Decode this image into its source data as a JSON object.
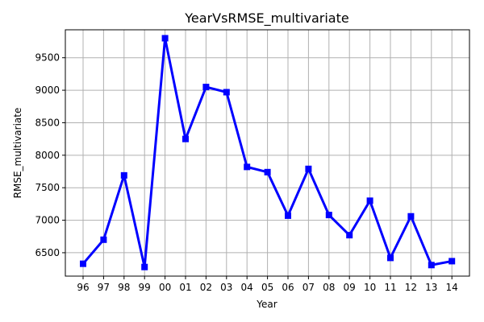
{
  "chart_data": {
    "type": "line",
    "title": "YearVsRMSE_multivariate",
    "xlabel": "Year",
    "ylabel": "RMSE_multivariate",
    "categories": [
      "96",
      "97",
      "98",
      "99",
      "00",
      "01",
      "02",
      "03",
      "04",
      "05",
      "06",
      "07",
      "08",
      "09",
      "10",
      "11",
      "12",
      "13",
      "14"
    ],
    "series": [
      {
        "values": [
          6330,
          6700,
          7690,
          6280,
          9800,
          8250,
          9050,
          8970,
          7820,
          7740,
          7070,
          7790,
          7080,
          6770,
          7300,
          6420,
          7060,
          6310,
          6370
        ],
        "color": "#0000ff",
        "marker": "square"
      }
    ],
    "ylim": [
      6140,
      9930
    ],
    "yticks": [
      6500,
      7000,
      7500,
      8000,
      8500,
      9000,
      9500
    ],
    "grid": true,
    "legend": "none"
  }
}
